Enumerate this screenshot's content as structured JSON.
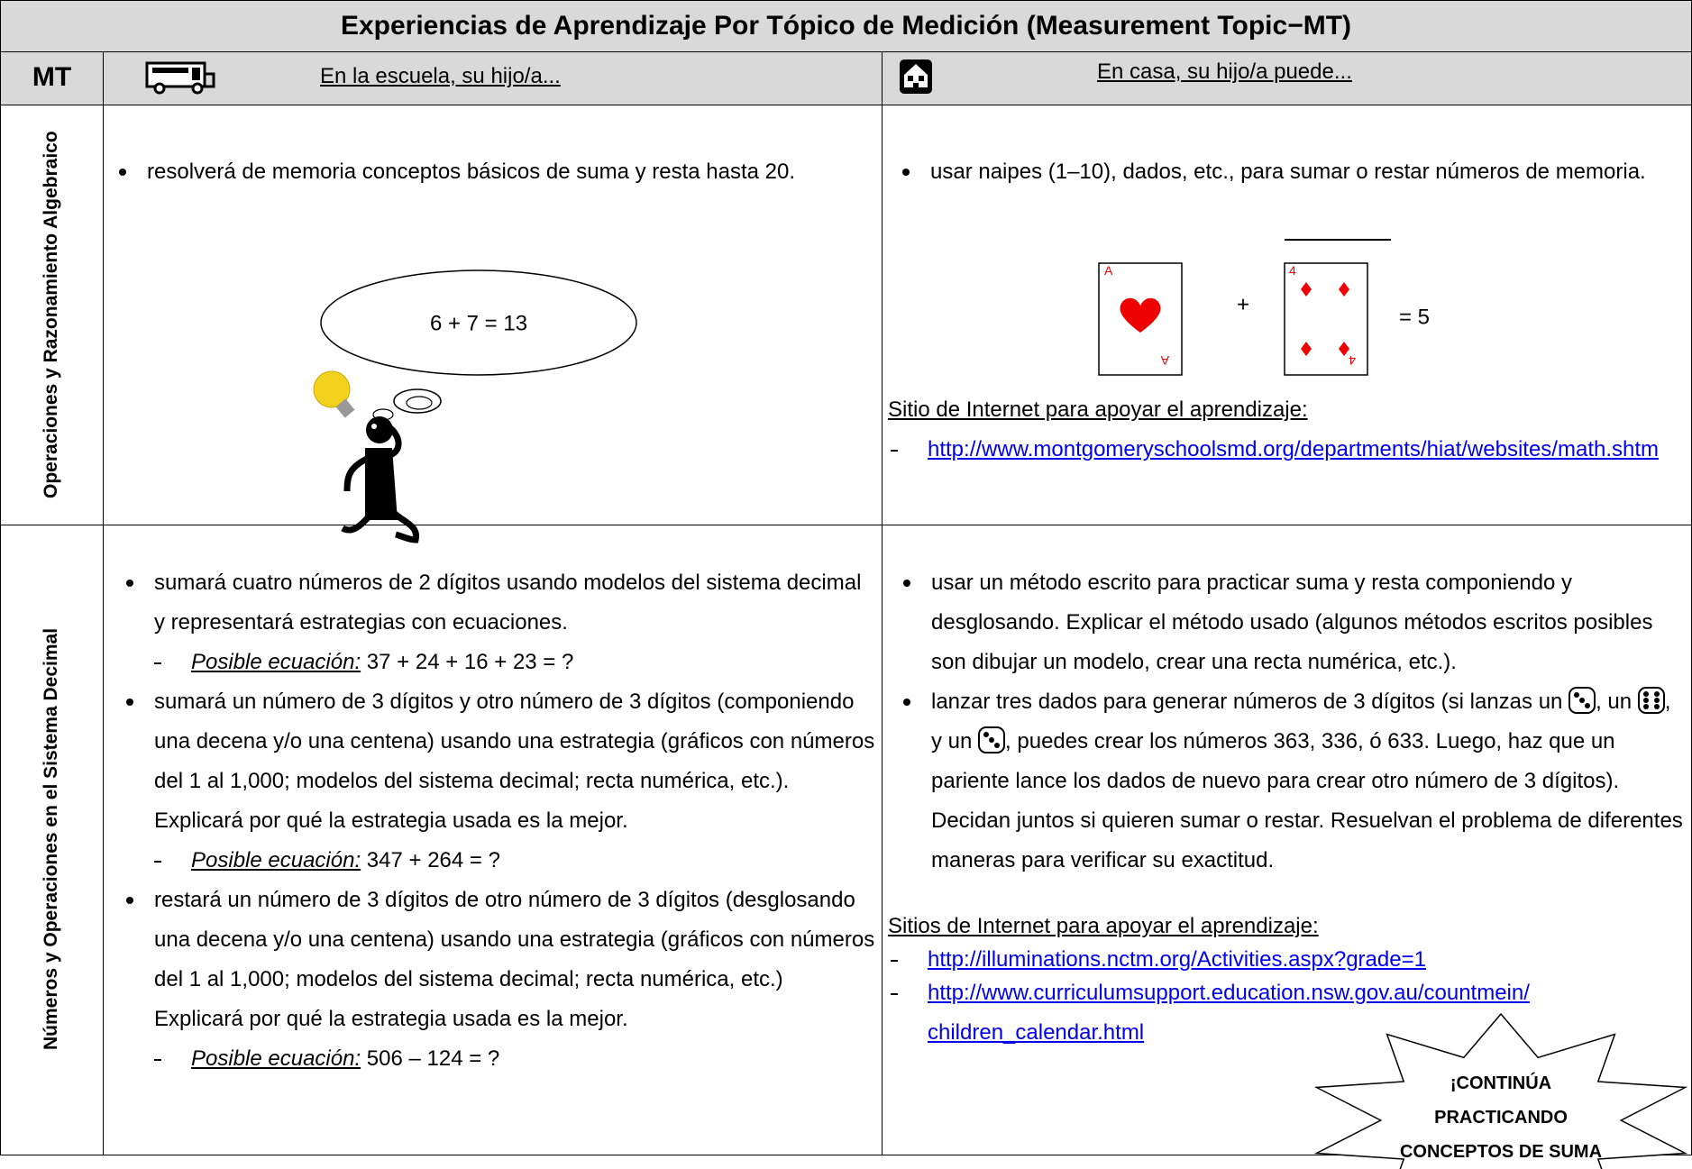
{
  "header": {
    "title": "Experiencias de Aprendizaje Por Tópico de Medición (Measurement Topic−MT)"
  },
  "columns": {
    "mt": "MT",
    "school": "En la escuela, su hijo/a...",
    "home": "En casa, su hijo/a puede..."
  },
  "rows": [
    {
      "topic": "Operaciones y Razonamiento Algebraico",
      "school": {
        "items": [
          "resolverá de memoria conceptos básicos de suma y resta hasta 20."
        ],
        "thought": "6 + 7 = 13"
      },
      "home": {
        "items": [
          "usar naipes (1–10), dados, etc., para sumar o restar números de memoria."
        ],
        "cards": {
          "first": "A",
          "plus": "+",
          "second": "4",
          "result": "= 5"
        },
        "links_heading": "Sitio de Internet para apoyar el aprendizaje:",
        "links": [
          "http://www.montgomeryschoolsmd.org/departments/hiat/websites/math.shtm"
        ]
      }
    },
    {
      "topic": "Números y Operaciones en el Sistema Decimal",
      "school": {
        "items": [
          {
            "text": "sumará cuatro números de 2 dígitos usando modelos del sistema decimal y representará estrategias con ecuaciones.",
            "label": "Posible ecuación:",
            "equation": "37 + 24 + 16 + 23 = ?"
          },
          {
            "text": "sumará un número de 3 dígitos y otro número de 3 dígitos (componiendo una decena y/o una centena) usando una estrategia (gráficos con números del 1 al 1,000; modelos del sistema decimal; recta numérica, etc.). Explicará por qué la estrategia usada es la  mejor.",
            "label": "Posible ecuación:",
            "equation": "347 + 264 = ?"
          },
          {
            "text": "restará un número de 3 dígitos de otro número de 3 dígitos (desglosando una decena y/o una centena) usando una estrategia (gráficos con números del 1 al 1,000; modelos del sistema decimal; recta numérica, etc.) Explicará por qué la estrategia usada es la mejor.",
            "label": "Posible ecuación:",
            "equation": "506 – 124 = ?"
          }
        ]
      },
      "home": {
        "items": [
          [
            "usar un método escrito para practicar suma y resta componiendo y desglosando.  Explicar el método usado (algunos métodos escritos posibles son dibujar un modelo, crear una recta numérica, etc.)."
          ],
          [
            "lanzar tres dados para generar números de 3 dígitos (si lanzas un",
            ", un",
            ", y un",
            ", puedes crear los números 363, 336, ó 633.  Luego, haz que un pariente lance los dados de nuevo para crear otro número de 3 dígitos). Decidan juntos si quieren sumar o restar.  Resuelvan el problema de diferentes maneras para verificar su exactitud."
          ]
        ],
        "links_heading": "Sitios de Internet para apoyar el aprendizaje:",
        "links": [
          "http://illuminations.nctm.org/Activities.aspx?grade=1",
          "http://www.curriculumsupport.education.nsw.gov.au/countmein/ children_calendar.html"
        ],
        "callout": "¡CONTINÚA PRACTICANDO CONCEPTOS DE SUMA"
      }
    }
  ]
}
